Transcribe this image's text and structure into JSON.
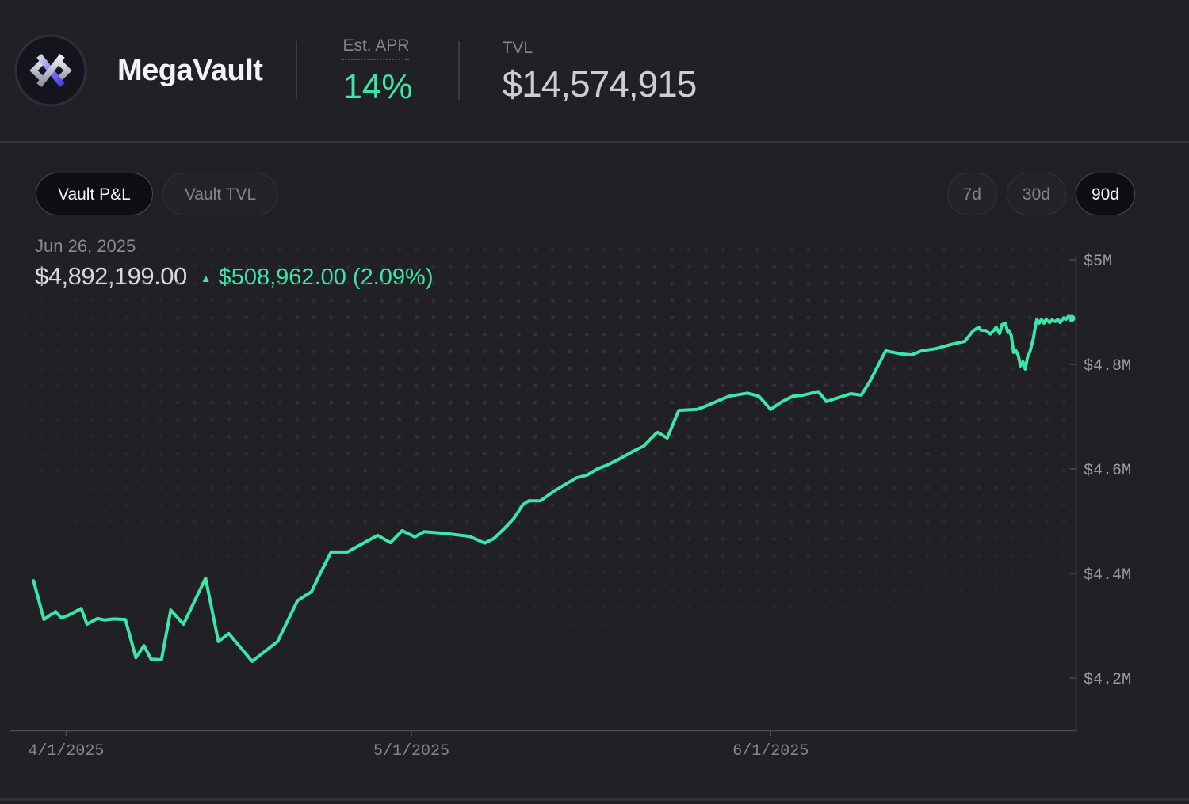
{
  "header": {
    "title": "MegaVault",
    "apr_label": "Est. APR",
    "apr_value": "14%",
    "tvl_label": "TVL",
    "tvl_value": "$14,574,915"
  },
  "toolbar": {
    "tabs": [
      {
        "label": "Vault P&L",
        "active": true
      },
      {
        "label": "Vault TVL",
        "active": false
      }
    ],
    "ranges": [
      {
        "label": "7d",
        "active": false
      },
      {
        "label": "30d",
        "active": false
      },
      {
        "label": "90d",
        "active": true
      }
    ]
  },
  "readout": {
    "date": "Jun 26, 2025",
    "value": "$4,892,199.00",
    "change": "$508,962.00 (2.09%)",
    "direction_glyph": "▲"
  },
  "colors": {
    "accent_green": "#3ce6a8",
    "purple": "#6258f0"
  },
  "chart_data": {
    "type": "line",
    "title": "Vault P&L (90d)",
    "series_name": "Vault P&L",
    "x_unit": "days since 2025-03-29",
    "x_domain": [
      0,
      90
    ],
    "y_unit": "USD millions",
    "ylim": [
      4.1,
      5.0
    ],
    "grid": "no gridlines; faint dot-matrix background",
    "legend_position": "none",
    "line_color": "#3ce6a8",
    "last_point": {
      "date": "Jun 26, 2025",
      "value_usd": 4892199.0
    },
    "x_ticks": [
      {
        "d": 3.3,
        "label": "4/1/2025"
      },
      {
        "d": 33.0,
        "label": "5/1/2025"
      },
      {
        "d": 63.9,
        "label": "6/1/2025"
      }
    ],
    "y_ticks": [
      {
        "v": 5.0,
        "label": "$5M"
      },
      {
        "v": 4.8,
        "label": "$4.8M"
      },
      {
        "v": 4.6,
        "label": "$4.6M"
      },
      {
        "v": 4.4,
        "label": "$4.4M"
      },
      {
        "v": 4.2,
        "label": "$4.2M"
      }
    ],
    "points": [
      [
        0.5,
        4.386
      ],
      [
        1.4,
        4.312
      ],
      [
        1.9,
        4.32
      ],
      [
        2.4,
        4.327
      ],
      [
        2.9,
        4.315
      ],
      [
        3.5,
        4.32
      ],
      [
        4.6,
        4.333
      ],
      [
        5.1,
        4.303
      ],
      [
        6.0,
        4.314
      ],
      [
        6.6,
        4.311
      ],
      [
        7.4,
        4.313
      ],
      [
        8.4,
        4.312
      ],
      [
        9.3,
        4.239
      ],
      [
        10.0,
        4.262
      ],
      [
        10.6,
        4.236
      ],
      [
        11.5,
        4.235
      ],
      [
        12.3,
        4.33
      ],
      [
        13.4,
        4.303
      ],
      [
        15.3,
        4.391
      ],
      [
        16.4,
        4.27
      ],
      [
        17.3,
        4.285
      ],
      [
        19.3,
        4.232
      ],
      [
        21.5,
        4.27
      ],
      [
        23.2,
        4.348
      ],
      [
        24.4,
        4.365
      ],
      [
        25.2,
        4.402
      ],
      [
        26.1,
        4.441
      ],
      [
        27.5,
        4.441
      ],
      [
        30.1,
        4.473
      ],
      [
        31.2,
        4.459
      ],
      [
        32.2,
        4.482
      ],
      [
        33.3,
        4.47
      ],
      [
        34.1,
        4.48
      ],
      [
        35.8,
        4.477
      ],
      [
        38.0,
        4.471
      ],
      [
        39.3,
        4.458
      ],
      [
        40.1,
        4.467
      ],
      [
        41.0,
        4.486
      ],
      [
        41.8,
        4.505
      ],
      [
        42.6,
        4.532
      ],
      [
        43.1,
        4.539
      ],
      [
        44.1,
        4.539
      ],
      [
        45.3,
        4.558
      ],
      [
        46.2,
        4.57
      ],
      [
        47.2,
        4.583
      ],
      [
        48.1,
        4.588
      ],
      [
        49.0,
        4.6
      ],
      [
        49.9,
        4.608
      ],
      [
        50.8,
        4.618
      ],
      [
        52.0,
        4.633
      ],
      [
        53.0,
        4.644
      ],
      [
        54.0,
        4.667
      ],
      [
        54.2,
        4.67
      ],
      [
        55.0,
        4.659
      ],
      [
        56.0,
        4.712
      ],
      [
        57.6,
        4.714
      ],
      [
        58.3,
        4.72
      ],
      [
        60.3,
        4.739
      ],
      [
        61.9,
        4.745
      ],
      [
        62.9,
        4.739
      ],
      [
        63.9,
        4.714
      ],
      [
        64.9,
        4.729
      ],
      [
        65.8,
        4.739
      ],
      [
        66.7,
        4.741
      ],
      [
        68.0,
        4.748
      ],
      [
        68.7,
        4.729
      ],
      [
        69.7,
        4.736
      ],
      [
        70.8,
        4.744
      ],
      [
        71.7,
        4.741
      ],
      [
        72.5,
        4.77
      ],
      [
        73.8,
        4.826
      ],
      [
        74.2,
        4.824
      ],
      [
        75.1,
        4.82
      ],
      [
        76.0,
        4.818
      ],
      [
        76.9,
        4.826
      ],
      [
        78.1,
        4.83
      ],
      [
        79.4,
        4.838
      ],
      [
        80.6,
        4.844
      ],
      [
        81.3,
        4.864
      ],
      [
        81.8,
        4.871
      ],
      [
        82.0,
        4.865
      ],
      [
        82.4,
        4.865
      ],
      [
        82.8,
        4.858
      ],
      [
        83.1,
        4.865
      ],
      [
        83.3,
        4.871
      ],
      [
        83.6,
        4.859
      ],
      [
        83.8,
        4.876
      ],
      [
        84.1,
        4.879
      ],
      [
        84.3,
        4.861
      ],
      [
        84.4,
        4.865
      ],
      [
        84.6,
        4.855
      ],
      [
        84.8,
        4.823
      ],
      [
        85.0,
        4.826
      ],
      [
        85.2,
        4.817
      ],
      [
        85.4,
        4.797
      ],
      [
        85.6,
        4.805
      ],
      [
        85.8,
        4.791
      ],
      [
        86.0,
        4.814
      ],
      [
        86.2,
        4.824
      ],
      [
        86.5,
        4.85
      ],
      [
        86.7,
        4.876
      ],
      [
        86.8,
        4.886
      ],
      [
        87.0,
        4.879
      ],
      [
        87.2,
        4.886
      ],
      [
        87.4,
        4.879
      ],
      [
        87.6,
        4.886
      ],
      [
        87.9,
        4.88
      ],
      [
        88.1,
        4.885
      ],
      [
        88.4,
        4.882
      ],
      [
        88.6,
        4.886
      ],
      [
        88.8,
        4.88
      ],
      [
        89.1,
        4.889
      ],
      [
        89.3,
        4.886
      ],
      [
        89.5,
        4.892
      ],
      [
        89.8,
        4.888
      ]
    ]
  }
}
